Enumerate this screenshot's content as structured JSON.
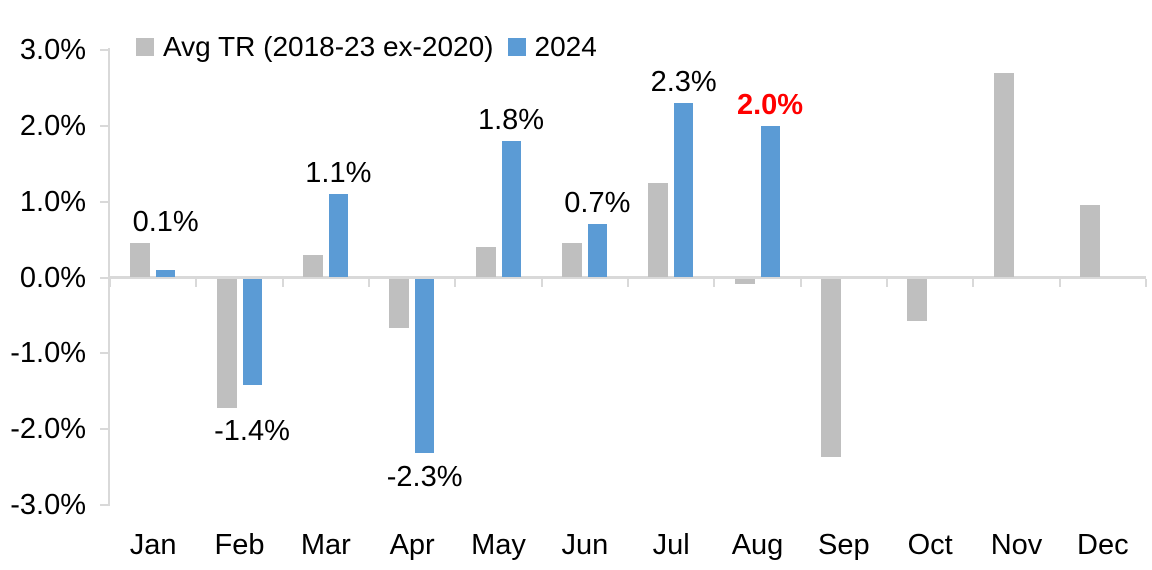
{
  "chart_data": {
    "type": "bar",
    "title": "",
    "categories": [
      "Jan",
      "Feb",
      "Mar",
      "Apr",
      "May",
      "Jun",
      "Jul",
      "Aug",
      "Sep",
      "Oct",
      "Nov",
      "Dec"
    ],
    "series": [
      {
        "name": "Avg TR (2018-23 ex-2020)",
        "color": "#BFBFBF",
        "values": [
          0.45,
          -1.7,
          0.3,
          -0.65,
          0.4,
          0.45,
          1.25,
          -0.07,
          -2.35,
          -0.55,
          2.7,
          0.95
        ]
      },
      {
        "name": "2024",
        "color": "#5B9BD5",
        "values": [
          0.1,
          -1.4,
          1.1,
          -2.3,
          1.8,
          0.7,
          2.3,
          2.0,
          null,
          null,
          null,
          null
        ],
        "data_labels": [
          {
            "text": "0.1%"
          },
          {
            "text": "-1.4%"
          },
          {
            "text": "1.1%"
          },
          {
            "text": "-2.3%"
          },
          {
            "text": "1.8%"
          },
          {
            "text": "0.7%"
          },
          {
            "text": "2.3%"
          },
          {
            "text": "2.0%",
            "color": "#FF0000",
            "bold": true
          },
          null,
          null,
          null,
          null
        ]
      }
    ],
    "xlabel": "",
    "ylabel": "",
    "ylim": [
      -3.0,
      3.0
    ],
    "grid": false,
    "legend_position": "top",
    "y_axis": {
      "ticks": [
        {
          "label": "3.0%",
          "value": 3.0
        },
        {
          "label": "2.0%",
          "value": 2.0
        },
        {
          "label": "1.0%",
          "value": 1.0
        },
        {
          "label": "0.0%",
          "value": 0.0
        },
        {
          "label": "-1.0%",
          "value": -1.0
        },
        {
          "label": "-2.0%",
          "value": -2.0
        },
        {
          "label": "-3.0%",
          "value": -3.0
        }
      ]
    }
  },
  "colors": {
    "bar_gray": "#BFBFBF",
    "bar_blue": "#5B9BD5",
    "axis_line": "#D9D9D9",
    "text": "#000000",
    "highlight_label": "#FF0000"
  }
}
